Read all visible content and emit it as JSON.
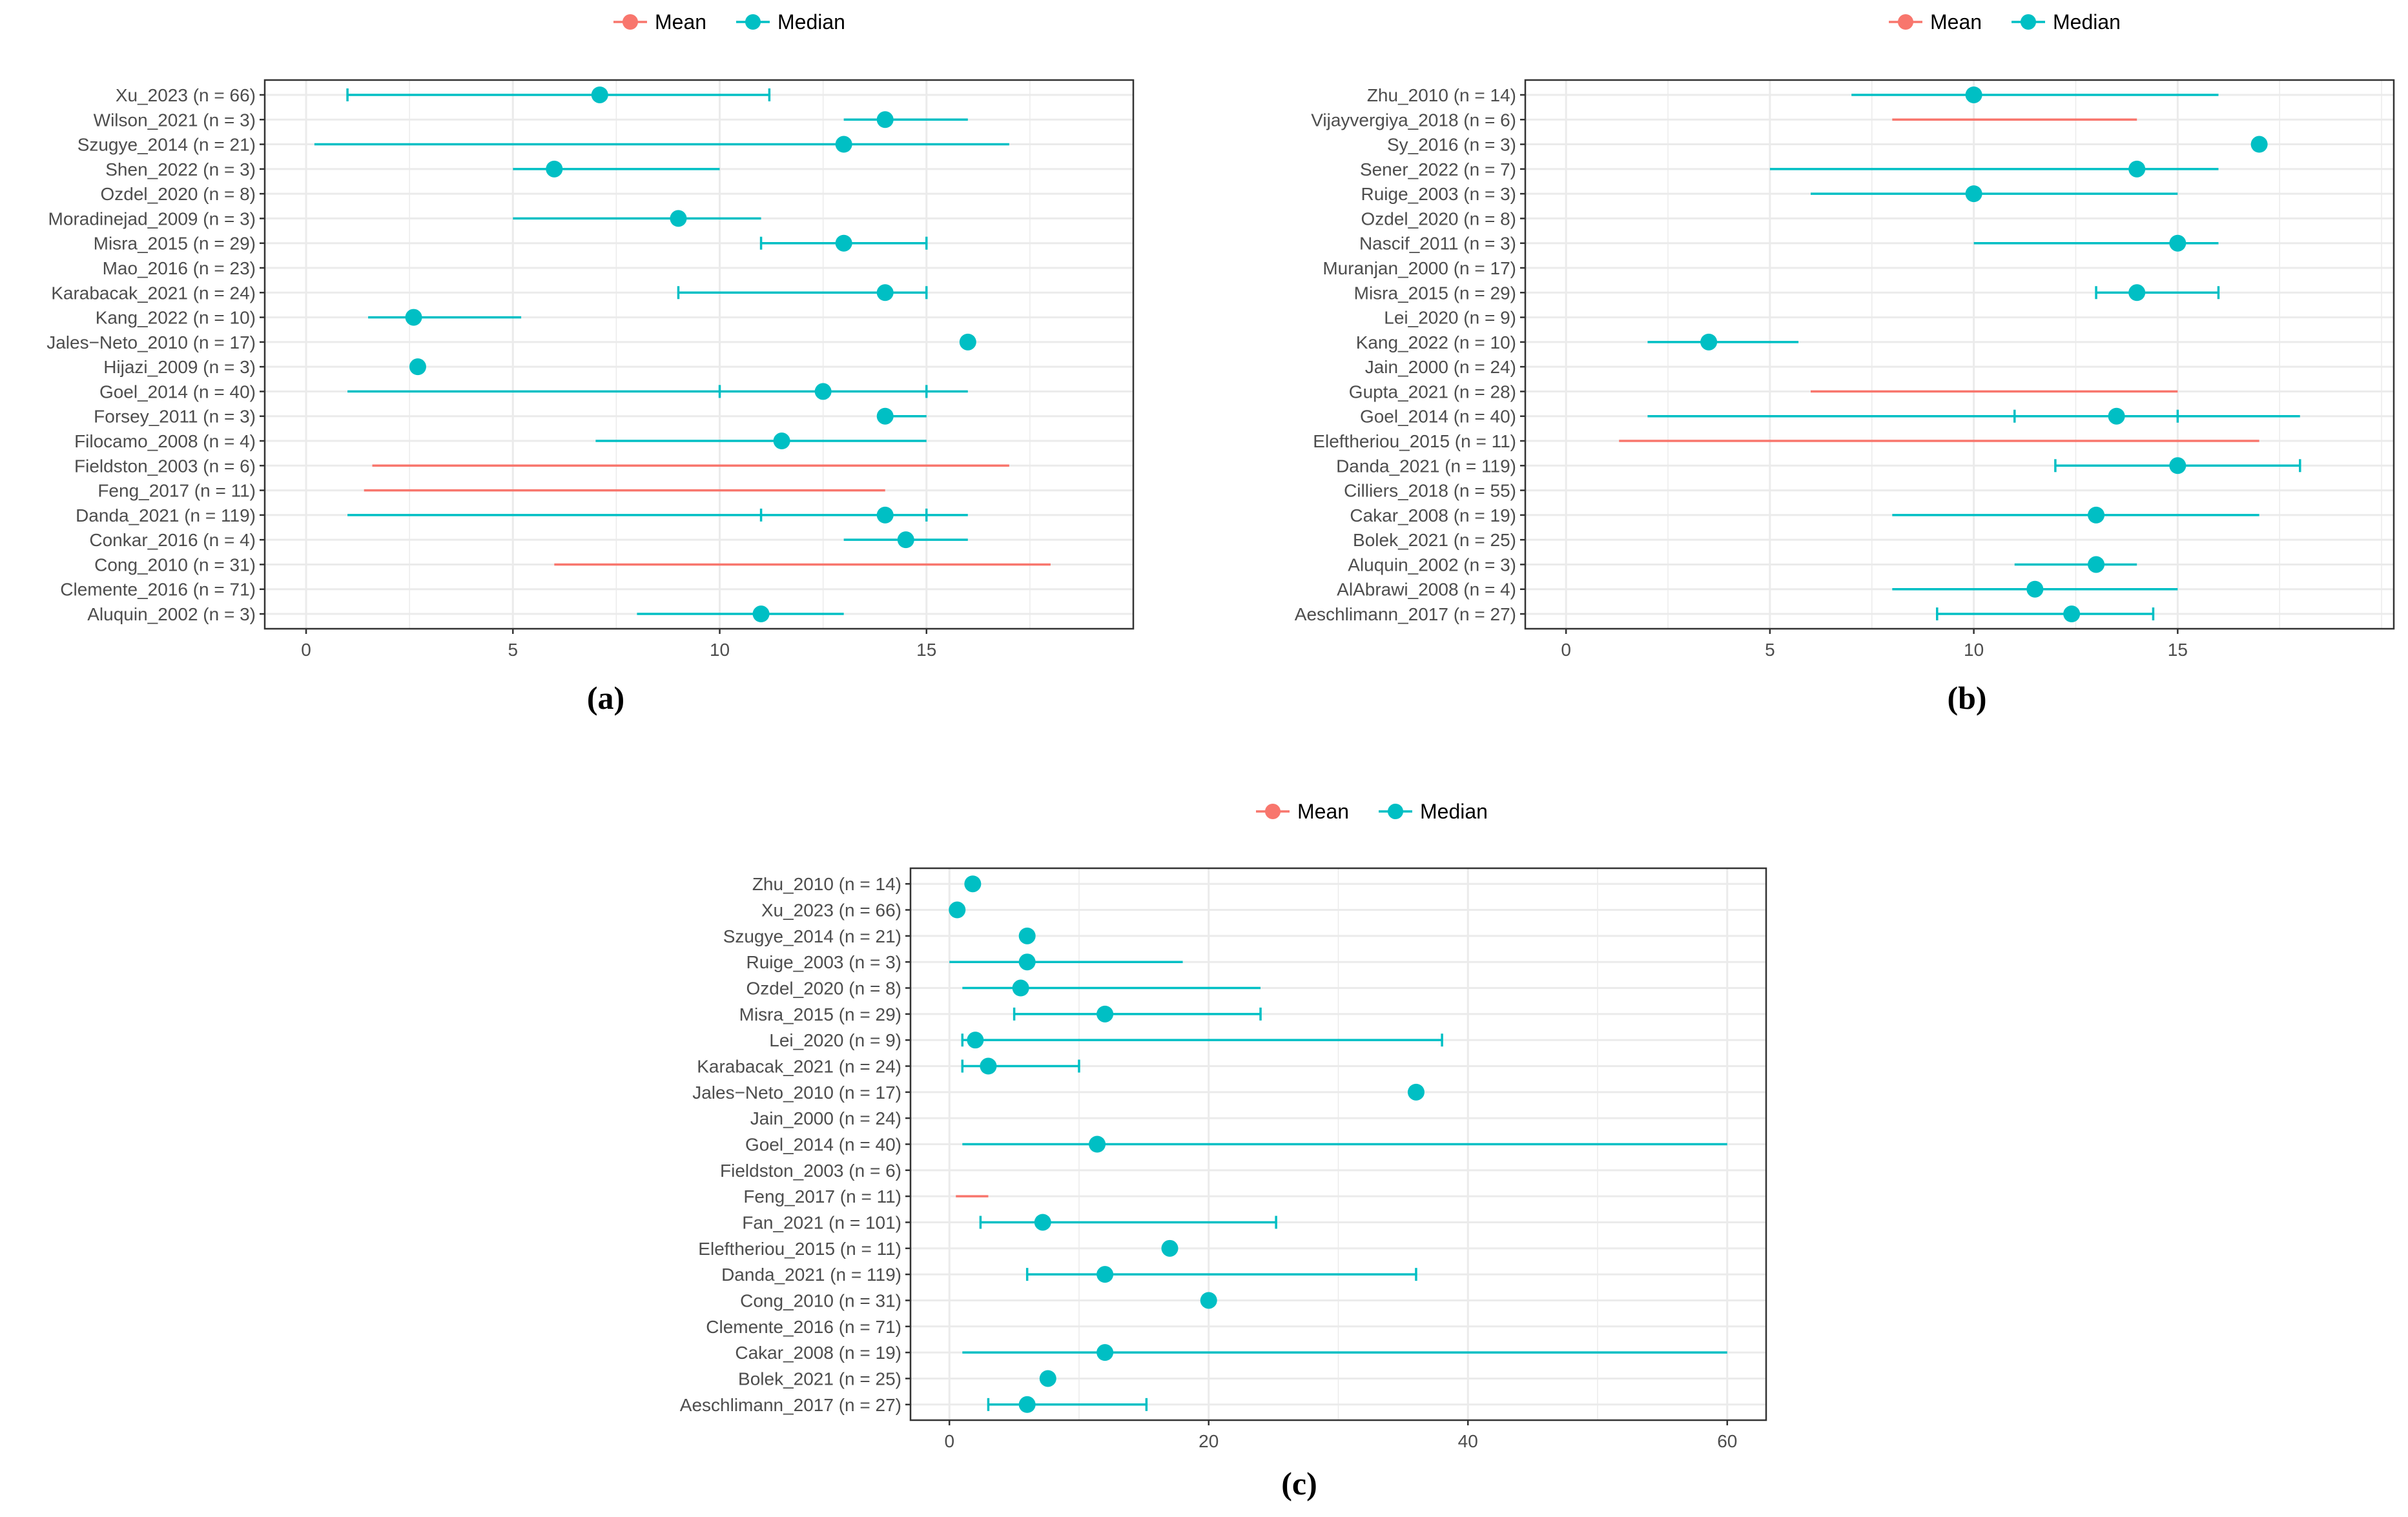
{
  "legend": {
    "mean_label": "Mean",
    "median_label": "Median",
    "mean_color": "#f8766d",
    "median_color": "#00bfc4"
  },
  "panels": [
    {
      "caption": "(a)",
      "xlim": [
        -1,
        20
      ],
      "xticks": [
        0,
        5,
        10,
        15
      ]
    },
    {
      "caption": "(b)",
      "xlim": [
        -1,
        20.3
      ],
      "xticks": [
        0,
        5,
        10,
        15
      ]
    },
    {
      "caption": "(c)",
      "xlim": [
        -3,
        63
      ],
      "xticks": [
        0,
        20,
        40,
        60
      ]
    }
  ],
  "chart_data": [
    {
      "type": "scatter",
      "title": "(a)",
      "xlabel": "",
      "ylabel": "",
      "xlim": [
        -1,
        20
      ],
      "grid": true,
      "legend": [
        "Mean",
        "Median"
      ],
      "studies": [
        {
          "label": "Xu_2023 (n = 66)",
          "stat": "median",
          "point": 7.1,
          "low": 1.0,
          "high": 11.2,
          "capped": true
        },
        {
          "label": "Wilson_2021 (n = 3)",
          "stat": "median",
          "point": 14,
          "low": 13,
          "high": 16,
          "capped": false
        },
        {
          "label": "Szugye_2014 (n = 21)",
          "stat": "median",
          "point": 13,
          "low": 0.2,
          "high": 17,
          "capped": false
        },
        {
          "label": "Shen_2022 (n = 3)",
          "stat": "median",
          "point": 6,
          "low": 5,
          "high": 10,
          "capped": false
        },
        {
          "label": "Ozdel_2020 (n = 8)",
          "stat": "none",
          "point": null,
          "low": null,
          "high": null,
          "capped": false
        },
        {
          "label": "Moradinejad_2009 (n = 3)",
          "stat": "median",
          "point": 9,
          "low": 5,
          "high": 11,
          "capped": false
        },
        {
          "label": "Misra_2015 (n = 29)",
          "stat": "median",
          "point": 13,
          "low": 11,
          "high": 15,
          "capped": true
        },
        {
          "label": "Mao_2016 (n = 23)",
          "stat": "none",
          "point": null,
          "low": null,
          "high": null,
          "capped": false
        },
        {
          "label": "Karabacak_2021 (n = 24)",
          "stat": "median",
          "point": 14,
          "low": 9,
          "high": 15,
          "capped": true
        },
        {
          "label": "Kang_2022 (n = 10)",
          "stat": "median",
          "point": 2.6,
          "low": 1.5,
          "high": 5.2,
          "capped": false
        },
        {
          "label": "Jales−Neto_2010 (n = 17)",
          "stat": "median",
          "point": 16,
          "low": null,
          "high": null,
          "capped": false
        },
        {
          "label": "Hijazi_2009 (n = 3)",
          "stat": "median",
          "point": 2.7,
          "low": null,
          "high": null,
          "capped": false
        },
        {
          "label": "Goel_2014 (n = 40)",
          "stat": "median",
          "point": 12.5,
          "low": 1,
          "high": 16,
          "capped": false,
          "inner": [
            10,
            15
          ]
        },
        {
          "label": "Forsey_2011 (n = 3)",
          "stat": "median",
          "point": 14,
          "low": 14,
          "high": 15,
          "capped": false
        },
        {
          "label": "Filocamo_2008 (n = 4)",
          "stat": "median",
          "point": 11.5,
          "low": 7,
          "high": 15,
          "capped": false
        },
        {
          "label": "Fieldston_2003 (n = 6)",
          "stat": "mean",
          "point": null,
          "low": 1.6,
          "high": 17,
          "capped": false
        },
        {
          "label": "Feng_2017 (n = 11)",
          "stat": "mean",
          "point": null,
          "low": 1.4,
          "high": 14,
          "capped": false
        },
        {
          "label": "Danda_2021 (n = 119)",
          "stat": "median",
          "point": 14,
          "low": 1,
          "high": 16,
          "capped": false,
          "inner": [
            11,
            15
          ]
        },
        {
          "label": "Conkar_2016 (n = 4)",
          "stat": "median",
          "point": 14.5,
          "low": 13,
          "high": 16,
          "capped": false
        },
        {
          "label": "Cong_2010 (n = 31)",
          "stat": "mean",
          "point": null,
          "low": 6,
          "high": 18,
          "capped": false
        },
        {
          "label": "Clemente_2016 (n = 71)",
          "stat": "none",
          "point": null,
          "low": null,
          "high": null,
          "capped": false
        },
        {
          "label": "Aluquin_2002 (n = 3)",
          "stat": "median",
          "point": 11,
          "low": 8,
          "high": 13,
          "capped": false
        }
      ]
    },
    {
      "type": "scatter",
      "title": "(b)",
      "xlabel": "",
      "ylabel": "",
      "xlim": [
        -1,
        20.3
      ],
      "grid": true,
      "legend": [
        "Mean",
        "Median"
      ],
      "studies": [
        {
          "label": "Zhu_2010 (n = 14)",
          "stat": "median",
          "point": 10,
          "low": 7,
          "high": 16,
          "capped": false
        },
        {
          "label": "Vijayvergiya_2018 (n = 6)",
          "stat": "mean",
          "point": null,
          "low": 8,
          "high": 14,
          "capped": false
        },
        {
          "label": "Sy_2016 (n = 3)",
          "stat": "median",
          "point": 17,
          "low": null,
          "high": null,
          "capped": false
        },
        {
          "label": "Sener_2022 (n = 7)",
          "stat": "median",
          "point": 14,
          "low": 5,
          "high": 16,
          "capped": false
        },
        {
          "label": "Ruige_2003 (n = 3)",
          "stat": "median",
          "point": 10,
          "low": 6,
          "high": 15,
          "capped": false
        },
        {
          "label": "Ozdel_2020 (n = 8)",
          "stat": "none",
          "point": null,
          "low": null,
          "high": null,
          "capped": false
        },
        {
          "label": "Nascif_2011 (n = 3)",
          "stat": "median",
          "point": 15,
          "low": 10,
          "high": 16,
          "capped": false
        },
        {
          "label": "Muranjan_2000 (n = 17)",
          "stat": "none",
          "point": null,
          "low": null,
          "high": null,
          "capped": false
        },
        {
          "label": "Misra_2015 (n = 29)",
          "stat": "median",
          "point": 14,
          "low": 13,
          "high": 16,
          "capped": true
        },
        {
          "label": "Lei_2020 (n = 9)",
          "stat": "none",
          "point": null,
          "low": null,
          "high": null,
          "capped": false
        },
        {
          "label": "Kang_2022 (n = 10)",
          "stat": "median",
          "point": 3.5,
          "low": 2,
          "high": 5.7,
          "capped": false
        },
        {
          "label": "Jain_2000 (n = 24)",
          "stat": "none",
          "point": null,
          "low": null,
          "high": null,
          "capped": false
        },
        {
          "label": "Gupta_2021 (n = 28)",
          "stat": "mean",
          "point": null,
          "low": 6,
          "high": 15,
          "capped": false
        },
        {
          "label": "Goel_2014 (n = 40)",
          "stat": "median",
          "point": 13.5,
          "low": 2,
          "high": 18,
          "capped": false,
          "inner": [
            11,
            15
          ]
        },
        {
          "label": "Eleftheriou_2015 (n = 11)",
          "stat": "mean",
          "point": null,
          "low": 1.3,
          "high": 17,
          "capped": false
        },
        {
          "label": "Danda_2021 (n = 119)",
          "stat": "median",
          "point": 15,
          "low": 12,
          "high": 18,
          "capped": true
        },
        {
          "label": "Cilliers_2018 (n = 55)",
          "stat": "none",
          "point": null,
          "low": null,
          "high": null,
          "capped": false
        },
        {
          "label": "Cakar_2008 (n = 19)",
          "stat": "median",
          "point": 13,
          "low": 8,
          "high": 17,
          "capped": false
        },
        {
          "label": "Bolek_2021 (n = 25)",
          "stat": "none",
          "point": null,
          "low": null,
          "high": null,
          "capped": false
        },
        {
          "label": "Aluquin_2002 (n = 3)",
          "stat": "median",
          "point": 13,
          "low": 11,
          "high": 14,
          "capped": false
        },
        {
          "label": "AlAbrawi_2008 (n = 4)",
          "stat": "median",
          "point": 11.5,
          "low": 8,
          "high": 15,
          "capped": false
        },
        {
          "label": "Aeschlimann_2017 (n = 27)",
          "stat": "median",
          "point": 12.4,
          "low": 9.1,
          "high": 14.4,
          "capped": true
        }
      ]
    },
    {
      "type": "scatter",
      "title": "(c)",
      "xlabel": "",
      "ylabel": "",
      "xlim": [
        -3,
        63
      ],
      "grid": true,
      "legend": [
        "Mean",
        "Median"
      ],
      "studies": [
        {
          "label": "Zhu_2010 (n = 14)",
          "stat": "median",
          "point": 1.8,
          "low": null,
          "high": null,
          "capped": false
        },
        {
          "label": "Xu_2023 (n = 66)",
          "stat": "median",
          "point": 0.6,
          "low": null,
          "high": null,
          "capped": false
        },
        {
          "label": "Szugye_2014 (n = 21)",
          "stat": "median",
          "point": 6,
          "low": null,
          "high": null,
          "capped": false
        },
        {
          "label": "Ruige_2003 (n = 3)",
          "stat": "median",
          "point": 6,
          "low": 0,
          "high": 18,
          "capped": false
        },
        {
          "label": "Ozdel_2020 (n = 8)",
          "stat": "median",
          "point": 5.5,
          "low": 1,
          "high": 24,
          "capped": false
        },
        {
          "label": "Misra_2015 (n = 29)",
          "stat": "median",
          "point": 12,
          "low": 5,
          "high": 24,
          "capped": true
        },
        {
          "label": "Lei_2020 (n = 9)",
          "stat": "median",
          "point": 2,
          "low": 1,
          "high": 38,
          "capped": true
        },
        {
          "label": "Karabacak_2021 (n = 24)",
          "stat": "median",
          "point": 3,
          "low": 1,
          "high": 10,
          "capped": true
        },
        {
          "label": "Jales−Neto_2010 (n = 17)",
          "stat": "median",
          "point": 36,
          "low": null,
          "high": null,
          "capped": false
        },
        {
          "label": "Jain_2000 (n = 24)",
          "stat": "none",
          "point": null,
          "low": null,
          "high": null,
          "capped": false
        },
        {
          "label": "Goel_2014 (n = 40)",
          "stat": "median",
          "point": 11.4,
          "low": 1,
          "high": 60,
          "capped": false
        },
        {
          "label": "Fieldston_2003 (n = 6)",
          "stat": "none",
          "point": null,
          "low": null,
          "high": null,
          "capped": false
        },
        {
          "label": "Feng_2017 (n = 11)",
          "stat": "mean",
          "point": null,
          "low": 0.5,
          "high": 3,
          "capped": false
        },
        {
          "label": "Fan_2021 (n = 101)",
          "stat": "median",
          "point": 7.2,
          "low": 2.4,
          "high": 25.2,
          "capped": true
        },
        {
          "label": "Eleftheriou_2015 (n = 11)",
          "stat": "median",
          "point": 17,
          "low": null,
          "high": null,
          "capped": false
        },
        {
          "label": "Danda_2021 (n = 119)",
          "stat": "median",
          "point": 12,
          "low": 6,
          "high": 36,
          "capped": true
        },
        {
          "label": "Cong_2010 (n = 31)",
          "stat": "median",
          "point": 20,
          "low": null,
          "high": null,
          "capped": false
        },
        {
          "label": "Clemente_2016 (n = 71)",
          "stat": "none",
          "point": null,
          "low": null,
          "high": null,
          "capped": false
        },
        {
          "label": "Cakar_2008 (n = 19)",
          "stat": "median",
          "point": 12,
          "low": 1,
          "high": 60,
          "capped": false
        },
        {
          "label": "Bolek_2021 (n = 25)",
          "stat": "median",
          "point": 7.6,
          "low": null,
          "high": null,
          "capped": false
        },
        {
          "label": "Aeschlimann_2017 (n = 27)",
          "stat": "median",
          "point": 6,
          "low": 3,
          "high": 15.2,
          "capped": true
        }
      ]
    }
  ]
}
